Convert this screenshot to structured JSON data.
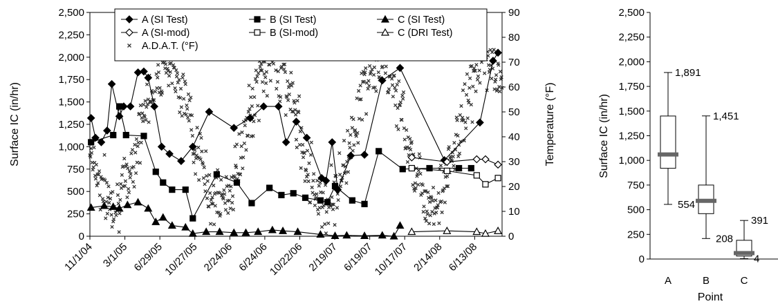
{
  "chart_data": [
    {
      "type": "line",
      "ylabel": "Surface IC (in/hr)",
      "y2label": "Temperature (°F)",
      "ylim": [
        0,
        2500
      ],
      "y2lim": [
        0,
        90
      ],
      "yticks": [
        "0",
        "250",
        "500",
        "750",
        "1,000",
        "1,250",
        "1,500",
        "1,750",
        "2,000",
        "2,250",
        "2,500"
      ],
      "y2ticks": [
        "0",
        "10",
        "20",
        "30",
        "40",
        "50",
        "60",
        "70",
        "80",
        "90"
      ],
      "xdomain": [
        "2004-11-01",
        "2008-09-15"
      ],
      "xtick_dates": [
        "2004-11-01",
        "2005-03-01",
        "2005-06-29",
        "2005-10-27",
        "2006-02-24",
        "2006-06-24",
        "2006-10-22",
        "2007-02-19",
        "2007-06-19",
        "2007-10-17",
        "2008-02-14",
        "2008-06-13"
      ],
      "xtick_labels": [
        "11/1/04",
        "3/1/05",
        "6/29/05",
        "10/27/05",
        "2/24/06",
        "6/24/06",
        "10/22/06",
        "2/19/07",
        "6/19/07",
        "10/17/07",
        "2/14/08",
        "6/13/08"
      ],
      "grid": false,
      "legend_position": "top",
      "series": [
        {
          "name": "A (SI Test)",
          "marker": "diamond-filled",
          "axis": "left",
          "points": [
            [
              "2004-11-05",
              1320
            ],
            [
              "2004-11-20",
              1100
            ],
            [
              "2004-12-10",
              1050
            ],
            [
              "2004-12-30",
              1180
            ],
            [
              "2005-01-15",
              1700
            ],
            [
              "2005-02-10",
              1340
            ],
            [
              "2005-02-25",
              1450
            ],
            [
              "2005-03-20",
              1450
            ],
            [
              "2005-04-15",
              1830
            ],
            [
              "2005-05-05",
              1840
            ],
            [
              "2005-05-20",
              1770
            ],
            [
              "2005-06-10",
              1450
            ],
            [
              "2005-07-05",
              1000
            ],
            [
              "2005-08-01",
              920
            ],
            [
              "2005-09-10",
              840
            ],
            [
              "2005-10-20",
              1000
            ],
            [
              "2005-12-15",
              1390
            ],
            [
              "2006-03-10",
              1210
            ],
            [
              "2006-05-05",
              1320
            ],
            [
              "2006-06-20",
              1450
            ],
            [
              "2006-08-10",
              1450
            ],
            [
              "2006-09-05",
              1050
            ],
            [
              "2006-10-10",
              1280
            ],
            [
              "2006-11-15",
              1100
            ],
            [
              "2007-01-05",
              650
            ],
            [
              "2007-01-20",
              620
            ],
            [
              "2007-02-10",
              1050
            ],
            [
              "2007-03-01",
              520
            ],
            [
              "2007-04-15",
              900
            ],
            [
              "2007-06-01",
              910
            ],
            [
              "2007-08-01",
              1740
            ],
            [
              "2007-10-01",
              1880
            ],
            [
              "2008-03-01",
              850
            ],
            [
              "2008-07-01",
              1270
            ],
            [
              "2008-08-15",
              1960
            ],
            [
              "2008-09-01",
              2050
            ]
          ]
        },
        {
          "name": "B (SI Test)",
          "marker": "square-filled",
          "axis": "left",
          "points": [
            [
              "2004-11-05",
              1050
            ],
            [
              "2005-01-20",
              1130
            ],
            [
              "2005-02-10",
              1450
            ],
            [
              "2005-03-05",
              1130
            ],
            [
              "2005-05-05",
              1120
            ],
            [
              "2005-06-15",
              720
            ],
            [
              "2005-07-10",
              600
            ],
            [
              "2005-08-10",
              520
            ],
            [
              "2005-09-25",
              520
            ],
            [
              "2005-10-20",
              200
            ],
            [
              "2006-01-10",
              690
            ],
            [
              "2006-03-20",
              600
            ],
            [
              "2006-05-10",
              370
            ],
            [
              "2006-07-10",
              540
            ],
            [
              "2006-08-20",
              460
            ],
            [
              "2006-09-30",
              480
            ],
            [
              "2006-11-10",
              430
            ],
            [
              "2007-01-01",
              400
            ],
            [
              "2007-01-25",
              380
            ],
            [
              "2007-02-20",
              560
            ],
            [
              "2007-04-20",
              400
            ],
            [
              "2007-06-01",
              360
            ],
            [
              "2007-07-20",
              950
            ],
            [
              "2007-10-10",
              750
            ],
            [
              "2008-01-10",
              760
            ],
            [
              "2008-04-20",
              760
            ],
            [
              "2008-06-01",
              760
            ]
          ]
        },
        {
          "name": "C (SI Test)",
          "marker": "triangle-filled",
          "axis": "left",
          "points": [
            [
              "2004-11-05",
              320
            ],
            [
              "2004-12-20",
              340
            ],
            [
              "2005-01-20",
              330
            ],
            [
              "2005-02-10",
              310
            ],
            [
              "2005-03-10",
              350
            ],
            [
              "2005-04-15",
              380
            ],
            [
              "2005-05-20",
              310
            ],
            [
              "2005-06-15",
              160
            ],
            [
              "2005-07-10",
              210
            ],
            [
              "2005-08-10",
              120
            ],
            [
              "2005-09-25",
              100
            ],
            [
              "2005-10-20",
              30
            ],
            [
              "2005-12-05",
              50
            ],
            [
              "2006-01-20",
              50
            ],
            [
              "2006-03-10",
              40
            ],
            [
              "2006-04-20",
              40
            ],
            [
              "2006-06-01",
              50
            ],
            [
              "2006-07-20",
              70
            ],
            [
              "2006-08-25",
              60
            ],
            [
              "2006-10-15",
              50
            ],
            [
              "2007-01-01",
              20
            ],
            [
              "2007-02-20",
              5
            ],
            [
              "2007-04-01",
              10
            ],
            [
              "2007-06-01",
              5
            ],
            [
              "2007-08-01",
              10
            ],
            [
              "2007-09-10",
              0
            ],
            [
              "2007-10-01",
              120
            ]
          ]
        },
        {
          "name": "A (SI-mod)",
          "marker": "diamond-open",
          "axis": "left",
          "points": [
            [
              "2007-11-10",
              880
            ],
            [
              "2008-03-10",
              830
            ],
            [
              "2008-06-20",
              860
            ],
            [
              "2008-07-20",
              860
            ],
            [
              "2008-09-01",
              800
            ]
          ]
        },
        {
          "name": "B (SI-mod)",
          "marker": "square-open",
          "axis": "left",
          "points": [
            [
              "2007-11-10",
              760
            ],
            [
              "2008-03-10",
              730
            ],
            [
              "2008-06-20",
              680
            ],
            [
              "2008-07-20",
              580
            ],
            [
              "2008-09-01",
              650
            ]
          ]
        },
        {
          "name": "C (DRI Test)",
          "marker": "triangle-open",
          "axis": "left",
          "points": [
            [
              "2007-11-10",
              50
            ],
            [
              "2008-03-10",
              60
            ],
            [
              "2008-06-20",
              50
            ],
            [
              "2008-07-20",
              30
            ],
            [
              "2008-09-01",
              60
            ]
          ]
        }
      ],
      "temperature_series": {
        "name": "A.D.A.T. (°F)",
        "marker": "x",
        "axis": "right",
        "annual_wave": {
          "trough_date": "2005-01-20",
          "trough_f": 14,
          "peak_f": 70,
          "scatter_f": 12
        },
        "note": "dense daily scatter cloud"
      }
    },
    {
      "type": "box",
      "ylabel": "Surface IC (in/hr)",
      "xlabel": "Point",
      "ylim": [
        0,
        2500
      ],
      "yticks": [
        "0",
        "250",
        "500",
        "750",
        "1,000",
        "1,250",
        "1,500",
        "1,750",
        "2,000",
        "2,250",
        "2,500"
      ],
      "categories": [
        "A",
        "B",
        "C"
      ],
      "boxes": [
        {
          "category": "A",
          "min": 554,
          "q1": 920,
          "median": 1060,
          "q3": 1450,
          "max": 1891,
          "min_label": "554",
          "max_label": "1,891"
        },
        {
          "category": "B",
          "min": 208,
          "q1": 460,
          "median": 590,
          "q3": 750,
          "max": 1451,
          "min_label": "208",
          "max_label": "1,451"
        },
        {
          "category": "C",
          "min": 4,
          "q1": 30,
          "median": 60,
          "q3": 190,
          "max": 391,
          "min_label": "4",
          "max_label": "391"
        }
      ]
    }
  ]
}
